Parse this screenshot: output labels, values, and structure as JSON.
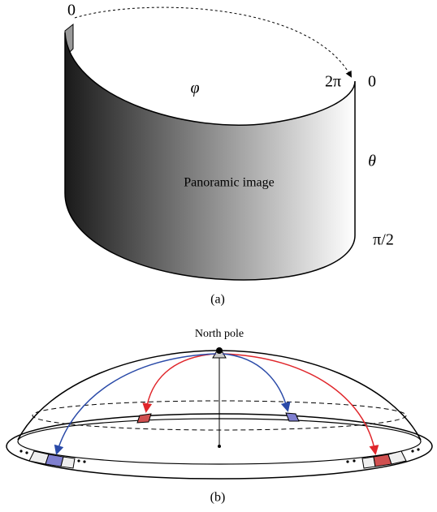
{
  "panel_a": {
    "phi_start": "0",
    "phi_end": "2π",
    "theta_top": "0",
    "phi": "φ",
    "theta": "θ",
    "theta_bottom": "π/2",
    "image_label": "Panoramic image",
    "caption": "(a)"
  },
  "panel_b": {
    "pole_label": "North pole",
    "caption": "(b)"
  }
}
